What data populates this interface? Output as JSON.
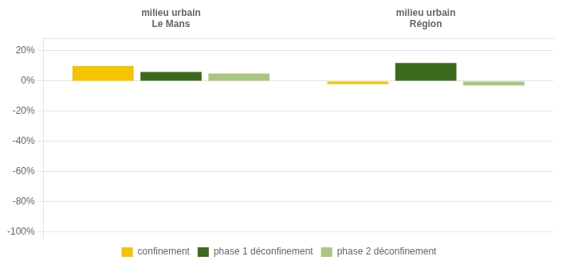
{
  "chart_data": {
    "type": "bar",
    "categories": [
      "milieu urbain\nLe Mans",
      "milieu urbain\nRégion"
    ],
    "series": [
      {
        "name": "confinement",
        "color": "#F5C400",
        "values": [
          10,
          -2
        ]
      },
      {
        "name": "phase 1 déconfinement",
        "color": "#3D6B1E",
        "values": [
          6,
          12
        ]
      },
      {
        "name": "phase 2 déconfinement",
        "color": "#A8C882",
        "values": [
          5,
          -3
        ]
      }
    ],
    "ylim": [
      -105,
      28
    ],
    "yticks": [
      {
        "value": 20,
        "label": "20%"
      },
      {
        "value": 0,
        "label": "0%"
      },
      {
        "value": -20,
        "label": "-20%"
      },
      {
        "value": -40,
        "label": "-40%"
      },
      {
        "value": -60,
        "label": "-60%"
      },
      {
        "value": -80,
        "label": "-80%"
      },
      {
        "value": -100,
        "label": "-100%"
      }
    ],
    "grid": true,
    "legend": "bottom"
  }
}
